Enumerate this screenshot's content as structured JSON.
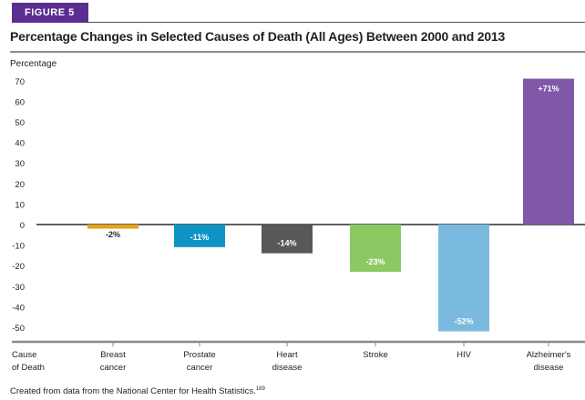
{
  "figure_label": "FIGURE 5",
  "source_note": "Created from data from the National Center for Health Statistics.",
  "source_ref": "169",
  "chart_data": {
    "type": "bar",
    "title": "Percentage Changes in Selected Causes of Death (All Ages) Between 2000 and 2013",
    "ylabel": "Percentage",
    "xlabel": "Cause of Death",
    "xlabel_lines": [
      "Cause",
      "of Death"
    ],
    "ylim": [
      -50,
      70
    ],
    "yticks": [
      70,
      60,
      50,
      40,
      30,
      20,
      10,
      0,
      -10,
      -20,
      -30,
      -40,
      -50
    ],
    "grid": false,
    "categories": [
      "Breast cancer",
      "Prostate cancer",
      "Heart disease",
      "Stroke",
      "HIV",
      "Alzheimer's disease"
    ],
    "category_lines": [
      [
        "Breast",
        "cancer"
      ],
      [
        "Prostate",
        "cancer"
      ],
      [
        "Heart",
        "disease"
      ],
      [
        "Stroke"
      ],
      [
        "HIV"
      ],
      [
        "Alzheimer's",
        "disease"
      ]
    ],
    "values": [
      -2,
      -11,
      -14,
      -23,
      -52,
      71
    ],
    "data_labels": [
      "-2%",
      "-11%",
      "-14%",
      "-23%",
      "-52%",
      "+71%"
    ],
    "colors": [
      "#e8a317",
      "#0d94c4",
      "#58585a",
      "#8cc963",
      "#7bbadf",
      "#7f58a8"
    ],
    "label_colors": [
      "#231f20",
      "#ffffff",
      "#ffffff",
      "#ffffff",
      "#ffffff",
      "#ffffff"
    ]
  }
}
